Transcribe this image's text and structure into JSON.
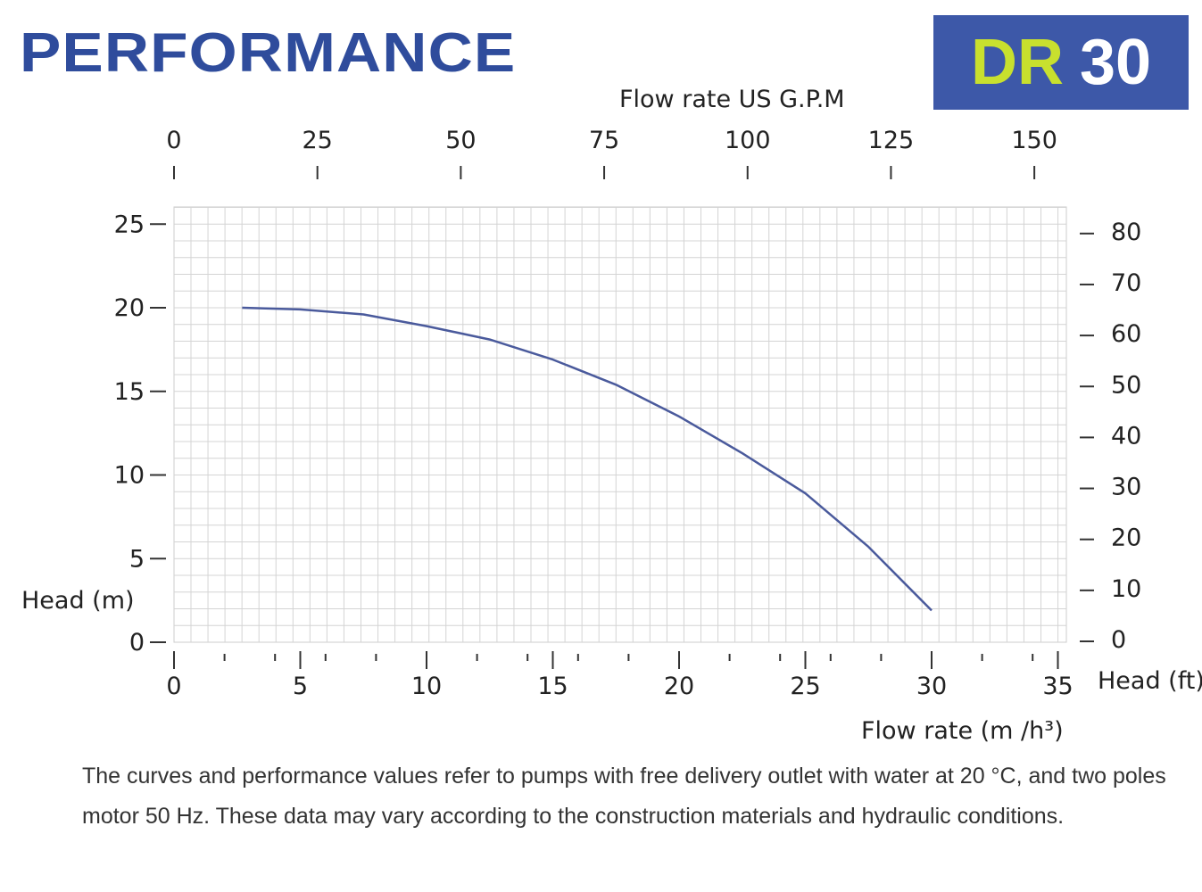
{
  "header": {
    "title": "PERFORMANCE",
    "model_prefix": "DR",
    "model_number": "30",
    "colors": {
      "title": "#2f4c9c",
      "logo_bg": "#3d58a8",
      "logo_prefix": "#c8e02e"
    }
  },
  "chart_data": {
    "type": "line",
    "xlabel": "Flow rate  (m /h³)",
    "x2label": "Flow rate US  G.P.M",
    "ylabel": "Head (m)",
    "y2label": "Head (ft)",
    "xlim": [
      0,
      35
    ],
    "ylim": [
      0,
      25
    ],
    "x_ticks": [
      0,
      5,
      10,
      15,
      20,
      25,
      30,
      35
    ],
    "y_ticks": [
      0,
      5,
      10,
      15,
      20,
      25
    ],
    "x2_ticks": [
      0,
      25,
      50,
      75,
      100,
      125,
      150
    ],
    "y2_ticks": [
      0,
      10,
      20,
      30,
      40,
      50,
      60,
      70,
      80
    ],
    "grid": true,
    "series": [
      {
        "color": "#4a5a9c",
        "x": [
          2.7,
          5,
          7.5,
          10,
          12.5,
          15,
          17.5,
          20,
          22.5,
          25,
          27.5,
          30
        ],
        "y": [
          20,
          19.9,
          19.6,
          18.9,
          18.1,
          16.9,
          15.4,
          13.5,
          11.3,
          8.9,
          5.7,
          1.9
        ]
      }
    ]
  },
  "note": "The curves and performance values refer to pumps with free delivery outlet with water at 20 °C, and two poles motor 50 Hz. These data may vary according to the construction materials and hydraulic conditions."
}
